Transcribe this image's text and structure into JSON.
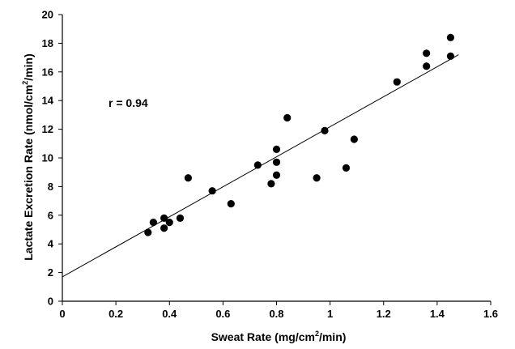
{
  "chart_data": {
    "type": "scatter",
    "title": "",
    "xlabel": {
      "before": "Sweat Rate (mg/cm",
      "sup": "2",
      "after": "/min)"
    },
    "ylabel": {
      "before": "Lactate Excretion Rate (nmol/cm",
      "sup": "2",
      "after": "/min)"
    },
    "xlim": [
      0,
      1.6
    ],
    "ylim": [
      0,
      20
    ],
    "xticks": [
      "0",
      "0.2",
      "0.4",
      "0.6",
      "0.8",
      "1",
      "1.2",
      "1.4",
      "1.6"
    ],
    "yticks": [
      "0",
      "2",
      "4",
      "6",
      "8",
      "10",
      "12",
      "14",
      "16",
      "18",
      "20"
    ],
    "annotation": "r = 0.94",
    "points": [
      {
        "x": 0.32,
        "y": 4.8
      },
      {
        "x": 0.34,
        "y": 5.5
      },
      {
        "x": 0.38,
        "y": 5.8
      },
      {
        "x": 0.38,
        "y": 5.1
      },
      {
        "x": 0.4,
        "y": 5.5
      },
      {
        "x": 0.44,
        "y": 5.8
      },
      {
        "x": 0.47,
        "y": 8.6
      },
      {
        "x": 0.56,
        "y": 7.7
      },
      {
        "x": 0.63,
        "y": 6.8
      },
      {
        "x": 0.73,
        "y": 9.5
      },
      {
        "x": 0.78,
        "y": 8.2
      },
      {
        "x": 0.8,
        "y": 10.6
      },
      {
        "x": 0.8,
        "y": 9.7
      },
      {
        "x": 0.8,
        "y": 8.8
      },
      {
        "x": 0.84,
        "y": 12.8
      },
      {
        "x": 0.95,
        "y": 8.6
      },
      {
        "x": 0.98,
        "y": 11.9
      },
      {
        "x": 1.06,
        "y": 9.3
      },
      {
        "x": 1.09,
        "y": 11.3
      },
      {
        "x": 1.25,
        "y": 15.3
      },
      {
        "x": 1.36,
        "y": 17.3
      },
      {
        "x": 1.36,
        "y": 16.4
      },
      {
        "x": 1.45,
        "y": 18.4
      },
      {
        "x": 1.45,
        "y": 17.1
      }
    ],
    "trendline": {
      "x": [
        0,
        1.48
      ],
      "y": [
        1.7,
        17.2
      ]
    },
    "grid": false,
    "legend": "none"
  }
}
